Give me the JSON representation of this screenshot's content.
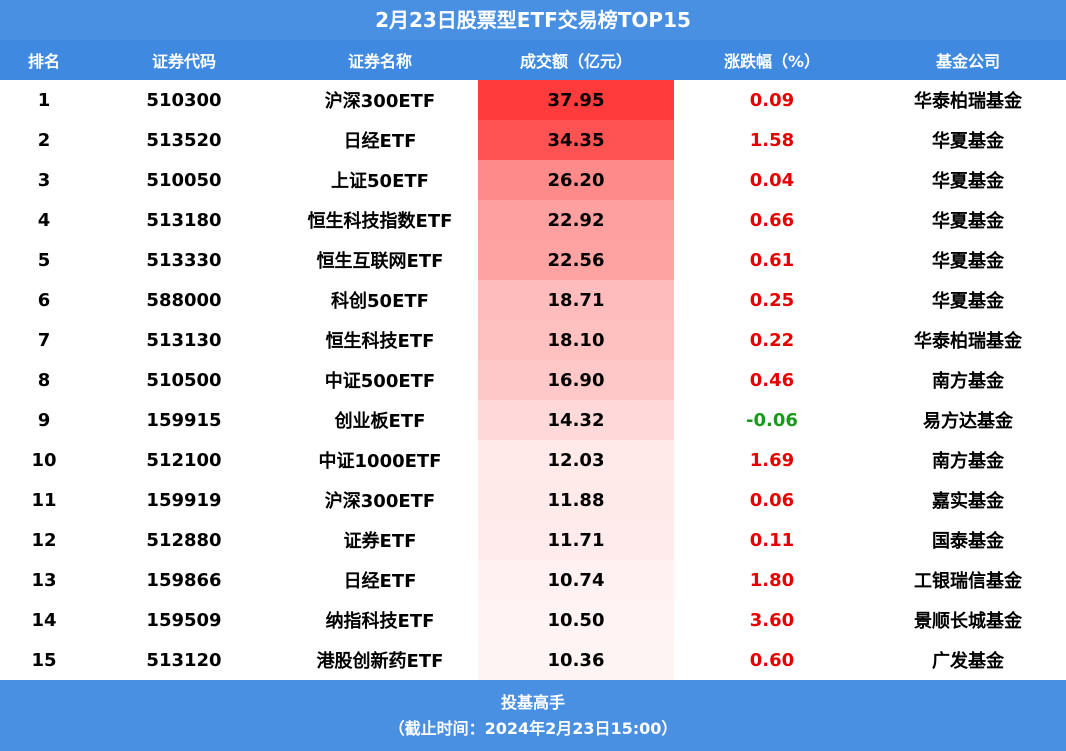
{
  "title": "2月23日股票型ETF交易榜TOP15",
  "headers": {
    "rank": "排名",
    "code": "证券代码",
    "name": "证券名称",
    "volume": "成交额（亿元）",
    "change": "涨跌幅（%）",
    "company": "基金公司"
  },
  "footer": {
    "brand": "投基高手",
    "cutoff": "（截止时间：2024年2月23日15:00）"
  },
  "colors": {
    "header_bg": "#3f8ae0",
    "title_bg": "#4a90e2",
    "bar_max": "#ff3b3b",
    "bar_min": "#fff4f4",
    "positive": "#e60000",
    "negative": "#1a9a1a"
  },
  "chart_data": {
    "type": "table",
    "title": "2月23日股票型ETF交易榜TOP15",
    "columns": [
      "排名",
      "证券代码",
      "证券名称",
      "成交额（亿元）",
      "涨跌幅（%）",
      "基金公司"
    ],
    "rows": [
      {
        "rank": "1",
        "code": "510300",
        "name": "沪深300ETF",
        "volume": "37.95",
        "change": "0.09",
        "company": "华泰柏瑞基金"
      },
      {
        "rank": "2",
        "code": "513520",
        "name": "日经ETF",
        "volume": "34.35",
        "change": "1.58",
        "company": "华夏基金"
      },
      {
        "rank": "3",
        "code": "510050",
        "name": "上证50ETF",
        "volume": "26.20",
        "change": "0.04",
        "company": "华夏基金"
      },
      {
        "rank": "4",
        "code": "513180",
        "name": "恒生科技指数ETF",
        "volume": "22.92",
        "change": "0.66",
        "company": "华夏基金"
      },
      {
        "rank": "5",
        "code": "513330",
        "name": "恒生互联网ETF",
        "volume": "22.56",
        "change": "0.61",
        "company": "华夏基金"
      },
      {
        "rank": "6",
        "code": "588000",
        "name": "科创50ETF",
        "volume": "18.71",
        "change": "0.25",
        "company": "华夏基金"
      },
      {
        "rank": "7",
        "code": "513130",
        "name": "恒生科技ETF",
        "volume": "18.10",
        "change": "0.22",
        "company": "华泰柏瑞基金"
      },
      {
        "rank": "8",
        "code": "510500",
        "name": "中证500ETF",
        "volume": "16.90",
        "change": "0.46",
        "company": "南方基金"
      },
      {
        "rank": "9",
        "code": "159915",
        "name": "创业板ETF",
        "volume": "14.32",
        "change": "-0.06",
        "company": "易方达基金"
      },
      {
        "rank": "10",
        "code": "512100",
        "name": "中证1000ETF",
        "volume": "12.03",
        "change": "1.69",
        "company": "南方基金"
      },
      {
        "rank": "11",
        "code": "159919",
        "name": "沪深300ETF",
        "volume": "11.88",
        "change": "0.06",
        "company": "嘉实基金"
      },
      {
        "rank": "12",
        "code": "512880",
        "name": "证券ETF",
        "volume": "11.71",
        "change": "0.11",
        "company": "国泰基金"
      },
      {
        "rank": "13",
        "code": "159866",
        "name": "日经ETF",
        "volume": "10.74",
        "change": "1.80",
        "company": "工银瑞信基金"
      },
      {
        "rank": "14",
        "code": "159509",
        "name": "纳指科技ETF",
        "volume": "10.50",
        "change": "3.60",
        "company": "景顺长城基金"
      },
      {
        "rank": "15",
        "code": "513120",
        "name": "港股创新药ETF",
        "volume": "10.36",
        "change": "0.60",
        "company": "广发基金"
      }
    ]
  }
}
